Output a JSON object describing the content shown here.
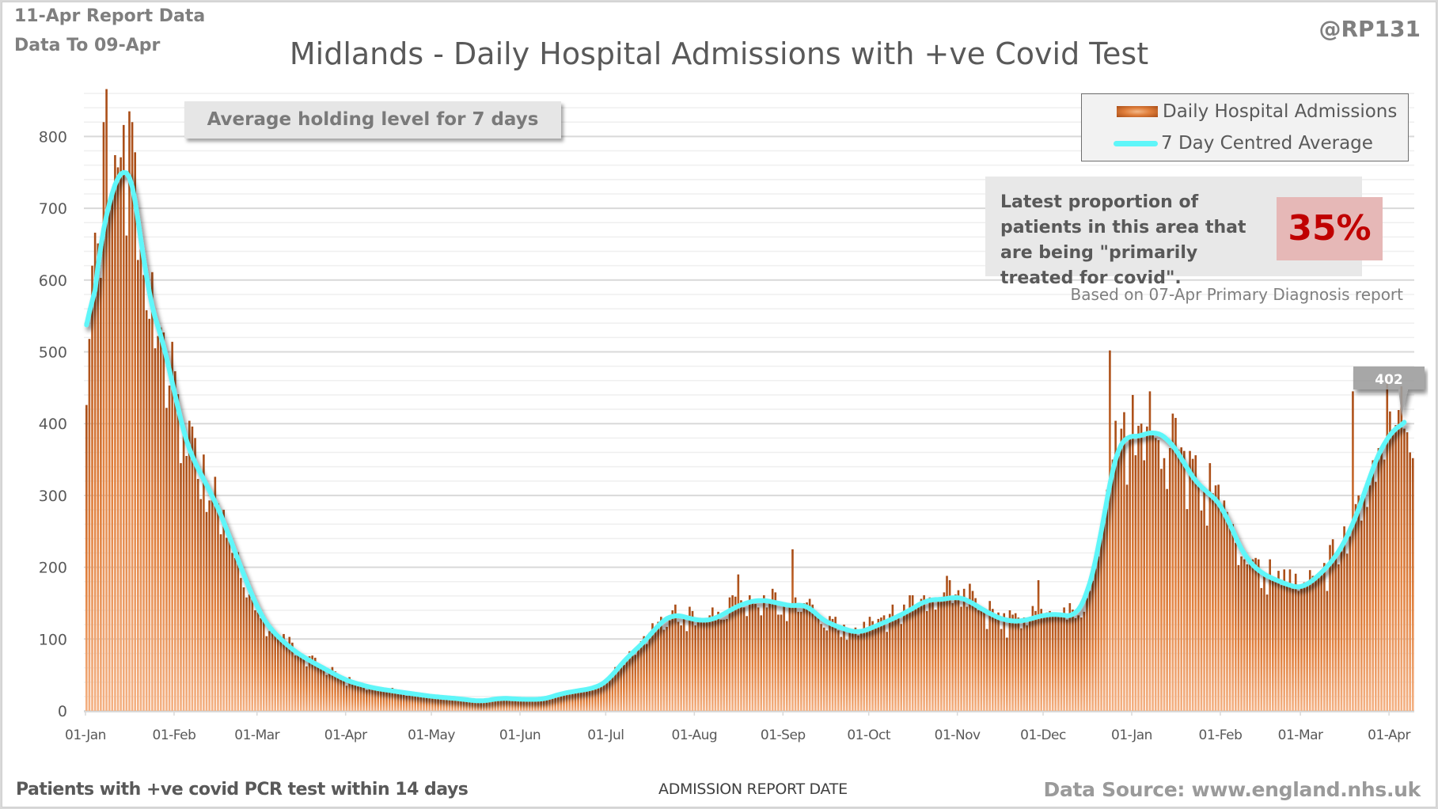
{
  "header": {
    "report_line1": "11-Apr Report Data",
    "report_line2": "Data To 09-Apr",
    "handle": "@RP131",
    "title": "Midlands - Daily Hospital Admissions with +ve Covid Test"
  },
  "annotations": {
    "average_holding": "Average holding level for 7 days",
    "proportion_text": "Latest proportion of patients in this area that are being \"primarily treated for covid\".",
    "proportion_value": "35%",
    "proportion_note": "Based on 07-Apr Primary Diagnosis report",
    "latest_average_label": "402"
  },
  "footer": {
    "left": "Patients with +ve covid PCR test within 14 days",
    "center": "ADMISSION  REPORT DATE",
    "right": "Data Source: www.england.nhs.uk"
  },
  "colors": {
    "bar_dark": "#a84c16",
    "bar_light": "#f4b183",
    "average_line": "#5ef6f9",
    "highlight_value": "#c00000",
    "highlight_bg": "#e6b8b7"
  },
  "chart_data": {
    "type": "bar",
    "title": "Midlands - Daily Hospital Admissions with +ve Covid Test",
    "xlabel": "ADMISSION  REPORT DATE",
    "ylabel": "",
    "ylim": [
      0,
      860
    ],
    "yticks": [
      0,
      100,
      200,
      300,
      400,
      500,
      600,
      700,
      800
    ],
    "grid": true,
    "legend_position": "top-right",
    "x_start": "01-Jan-2020",
    "x_end": "09-Apr-2021",
    "xtick_labels": [
      "01-Jan",
      "01-Feb",
      "01-Mar",
      "01-Apr",
      "01-May",
      "01-Jun",
      "01-Jul",
      "01-Aug",
      "01-Sep",
      "01-Oct",
      "01-Nov",
      "01-Dec",
      "01-Jan",
      "01-Feb",
      "01-Mar",
      "01-Apr"
    ],
    "xtick_day_index": [
      0,
      31,
      60,
      91,
      121,
      152,
      182,
      213,
      244,
      274,
      305,
      335,
      366,
      397,
      425,
      456
    ],
    "series": [
      {
        "name": "Daily Hospital Admissions",
        "type": "bar",
        "keypoints_day_value": [
          [
            0,
            470
          ],
          [
            1,
            520
          ],
          [
            3,
            600
          ],
          [
            5,
            650
          ],
          [
            7,
            700
          ],
          [
            9,
            730
          ],
          [
            11,
            740
          ],
          [
            13,
            760
          ],
          [
            15,
            760
          ],
          [
            17,
            730
          ],
          [
            19,
            660
          ],
          [
            21,
            580
          ],
          [
            23,
            560
          ],
          [
            25,
            540
          ],
          [
            27,
            510
          ],
          [
            30,
            460
          ],
          [
            33,
            400
          ],
          [
            36,
            360
          ],
          [
            40,
            330
          ],
          [
            44,
            300
          ],
          [
            48,
            265
          ],
          [
            52,
            220
          ],
          [
            56,
            180
          ],
          [
            60,
            140
          ],
          [
            64,
            115
          ],
          [
            68,
            100
          ],
          [
            72,
            85
          ],
          [
            78,
            70
          ],
          [
            85,
            55
          ],
          [
            91,
            42
          ],
          [
            100,
            32
          ],
          [
            110,
            26
          ],
          [
            121,
            20
          ],
          [
            130,
            17
          ],
          [
            138,
            13
          ],
          [
            145,
            18
          ],
          [
            152,
            16
          ],
          [
            160,
            16
          ],
          [
            166,
            24
          ],
          [
            172,
            28
          ],
          [
            178,
            32
          ],
          [
            182,
            40
          ],
          [
            186,
            60
          ],
          [
            190,
            78
          ],
          [
            195,
            95
          ],
          [
            200,
            120
          ],
          [
            205,
            135
          ],
          [
            210,
            130
          ],
          [
            215,
            125
          ],
          [
            220,
            128
          ],
          [
            225,
            140
          ],
          [
            230,
            150
          ],
          [
            236,
            155
          ],
          [
            242,
            150
          ],
          [
            248,
            145
          ],
          [
            252,
            150
          ],
          [
            256,
            130
          ],
          [
            262,
            118
          ],
          [
            270,
            108
          ],
          [
            276,
            118
          ],
          [
            282,
            128
          ],
          [
            288,
            140
          ],
          [
            294,
            155
          ],
          [
            300,
            155
          ],
          [
            305,
            160
          ],
          [
            310,
            150
          ],
          [
            316,
            135
          ],
          [
            322,
            125
          ],
          [
            328,
            125
          ],
          [
            334,
            133
          ],
          [
            340,
            135
          ],
          [
            346,
            130
          ],
          [
            350,
            160
          ],
          [
            354,
            220
          ],
          [
            357,
            300
          ],
          [
            360,
            360
          ],
          [
            363,
            385
          ],
          [
            366,
            380
          ],
          [
            370,
            385
          ],
          [
            374,
            390
          ],
          [
            378,
            380
          ],
          [
            382,
            360
          ],
          [
            386,
            330
          ],
          [
            390,
            310
          ],
          [
            394,
            300
          ],
          [
            398,
            280
          ],
          [
            402,
            240
          ],
          [
            406,
            210
          ],
          [
            410,
            195
          ],
          [
            414,
            185
          ],
          [
            418,
            180
          ],
          [
            422,
            172
          ],
          [
            426,
            172
          ],
          [
            430,
            185
          ],
          [
            434,
            200
          ],
          [
            438,
            220
          ],
          [
            442,
            250
          ],
          [
            446,
            290
          ],
          [
            450,
            340
          ],
          [
            454,
            375
          ],
          [
            458,
            395
          ],
          [
            461,
            402
          ],
          [
            464,
            402
          ]
        ],
        "notable_daily_values": {
          "max": 866,
          "max_date": "~08-Jan-2020",
          "second_wave_max": 502,
          "second_wave_max_date": "~26-Dec-2020",
          "sep_spike": 225
        }
      },
      {
        "name": "7 Day Centred Average",
        "type": "line",
        "peak": 760,
        "peak_date": "~14-Jan-2020",
        "last_value": 402,
        "last_date": "06-Apr-2021"
      }
    ]
  }
}
